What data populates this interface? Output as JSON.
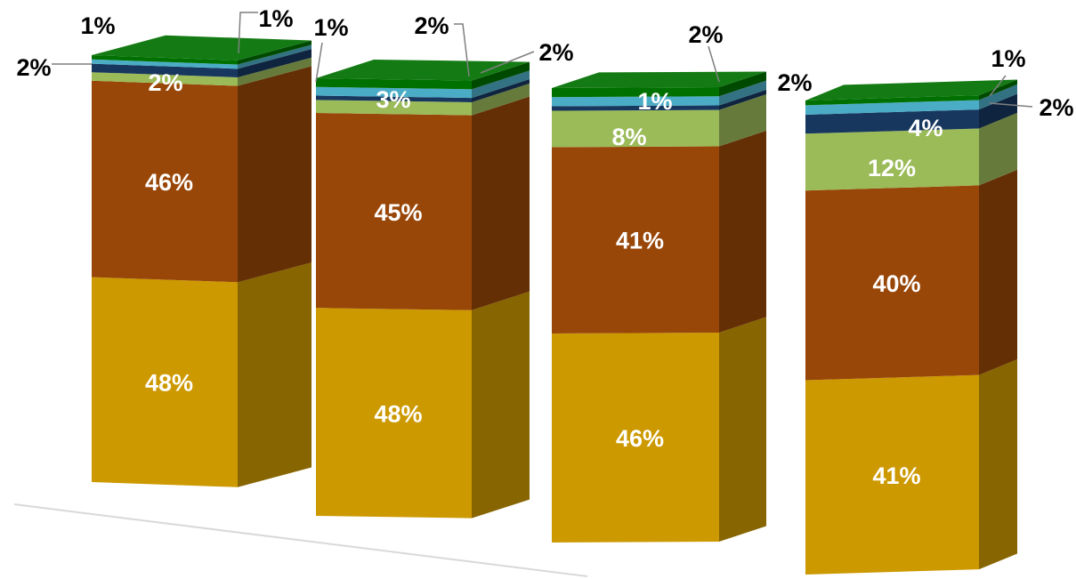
{
  "chart_data": {
    "type": "bar",
    "stacked": true,
    "three_d": true,
    "title": "",
    "xlabel": "",
    "ylabel": "",
    "categories": [
      "",
      "",
      "",
      ""
    ],
    "series": [
      {
        "color": "#CC9900",
        "values": [
          48,
          48,
          46,
          41
        ]
      },
      {
        "color": "#994709",
        "values": [
          46,
          45,
          41,
          40
        ]
      },
      {
        "color": "#9BBB59",
        "values": [
          2,
          3,
          8,
          12
        ]
      },
      {
        "color": "#17375E",
        "values": [
          2,
          1,
          1,
          4
        ]
      },
      {
        "color": "#4BACC6",
        "values": [
          1,
          2,
          2,
          2
        ]
      },
      {
        "color": "#007000",
        "values": [
          1,
          2,
          2,
          1
        ]
      }
    ],
    "labels": [
      [
        "48%",
        "46%",
        "2%",
        "2%",
        "1%",
        "1%"
      ],
      [
        "48%",
        "45%",
        "3%",
        "1%",
        "2%",
        "2%"
      ],
      [
        "46%",
        "41%",
        "8%",
        "1%",
        "2%",
        "2%"
      ],
      [
        "41%",
        "40%",
        "12%",
        "4%",
        "2%",
        "1%"
      ]
    ],
    "grid": false,
    "legend": "none"
  }
}
